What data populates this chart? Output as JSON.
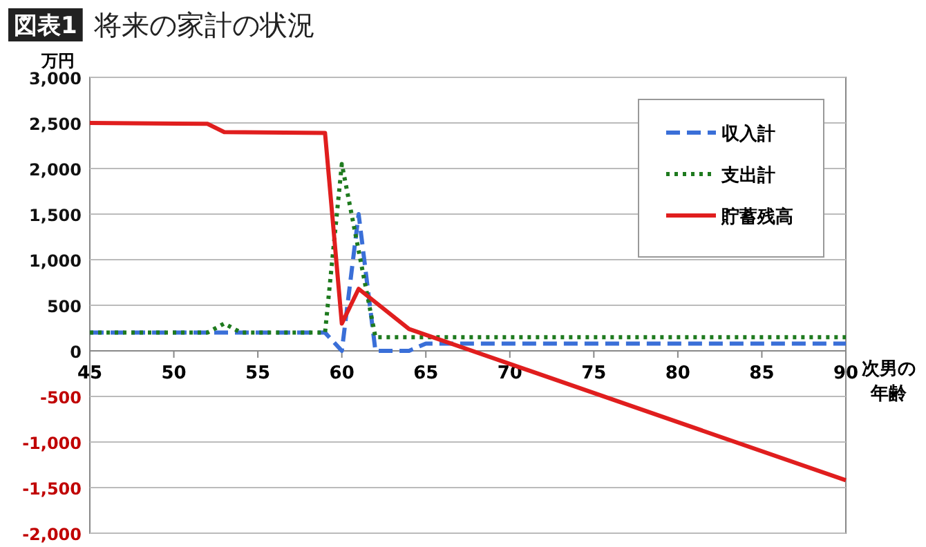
{
  "chart_data": {
    "type": "line",
    "title": "将来の家計の状況",
    "annotations": [
      "図表1"
    ],
    "ylabel": "万円",
    "xlabel": "次男の年齢",
    "xlim": [
      45,
      90
    ],
    "xticks": [
      45,
      50,
      55,
      60,
      65,
      70,
      75,
      80,
      85,
      90
    ],
    "ylim": [
      -2000,
      3000
    ],
    "yticks": [
      {
        "value": 3000,
        "label": "3,000"
      },
      {
        "value": 2500,
        "label": "2,500"
      },
      {
        "value": 2000,
        "label": "2,000"
      },
      {
        "value": 1500,
        "label": "1,500"
      },
      {
        "value": 1000,
        "label": "1,000"
      },
      {
        "value": 500,
        "label": "500"
      },
      {
        "value": 0,
        "label": "0"
      },
      {
        "value": -500,
        "label": "-500"
      },
      {
        "value": -1000,
        "label": "-1,000"
      },
      {
        "value": -1500,
        "label": "-1,500"
      },
      {
        "value": -2000,
        "label": "-2,000"
      }
    ],
    "grid": "y",
    "legend": "top right",
    "series": [
      {
        "name": "収入計",
        "color": "#3a6fd8",
        "line_style": "dashed",
        "x": [
          45,
          59,
          60,
          61,
          62,
          64,
          65,
          90
        ],
        "values": [
          200,
          200,
          0,
          1500,
          0,
          0,
          80,
          80
        ]
      },
      {
        "name": "支出計",
        "color": "#1e7a1e",
        "line_style": "dotted",
        "x": [
          45,
          52,
          53,
          54,
          59,
          60,
          61,
          62,
          90
        ],
        "values": [
          200,
          200,
          300,
          200,
          200,
          2050,
          1100,
          150,
          150
        ]
      },
      {
        "name": "貯蓄残高",
        "color": "#e01e1e",
        "line_style": "solid",
        "x": [
          45,
          52,
          53,
          59,
          60,
          61,
          64,
          90
        ],
        "values": [
          2500,
          2490,
          2400,
          2390,
          300,
          680,
          240,
          -1420
        ]
      }
    ]
  }
}
